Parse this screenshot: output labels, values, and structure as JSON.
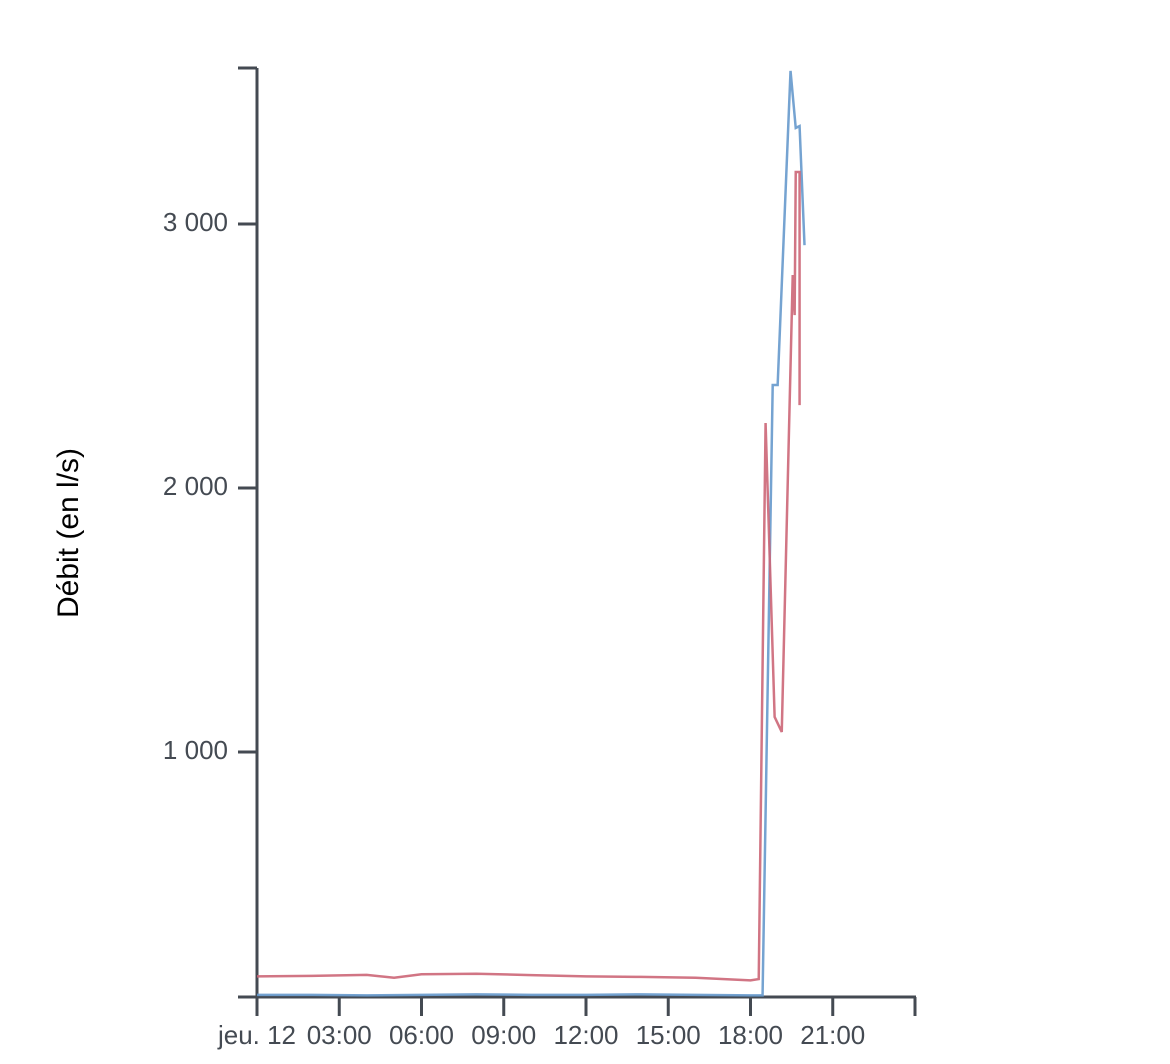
{
  "chart_data": {
    "type": "line",
    "y_label": "Débit (en l/s)",
    "xlim": [
      0,
      24
    ],
    "xticks": [
      {
        "value": 0,
        "label": "jeu. 12"
      },
      {
        "value": 3,
        "label": "03:00"
      },
      {
        "value": 6,
        "label": "06:00"
      },
      {
        "value": 9,
        "label": "09:00"
      },
      {
        "value": 12,
        "label": "12:00"
      },
      {
        "value": 15,
        "label": "15:00"
      },
      {
        "value": 18,
        "label": "18:00"
      },
      {
        "value": 21,
        "label": "21:00"
      }
    ],
    "ylim": [
      72,
      3591
    ],
    "yticks": [
      {
        "value": 1000,
        "label": "1 000"
      },
      {
        "value": 2000,
        "label": "2 000"
      },
      {
        "value": 3000,
        "label": "3 000"
      }
    ],
    "series": [
      {
        "color": "#6699cc",
        "x": [
          0,
          2,
          4,
          6,
          8,
          10,
          12,
          14,
          16,
          18,
          18.44,
          18.81,
          18.99,
          19.46,
          19.65,
          19.79,
          19.97
        ],
        "values": [
          80,
          80,
          78,
          80,
          82,
          80,
          80,
          82,
          80,
          78,
          78,
          2390,
          2390,
          3580,
          3364,
          3371,
          2920
        ]
      },
      {
        "color": "#cc6677",
        "x": [
          0,
          2,
          4,
          5,
          6,
          8,
          10,
          12,
          14,
          16,
          18,
          18.3,
          18.55,
          18.88,
          19.14,
          19.54,
          19.61,
          19.65,
          19.79,
          19.79
        ],
        "values": [
          150,
          152,
          156,
          145,
          158,
          160,
          155,
          150,
          148,
          145,
          135,
          140,
          2246,
          1133,
          1076,
          2807,
          2655,
          3197,
          3197,
          2314
        ]
      }
    ]
  }
}
